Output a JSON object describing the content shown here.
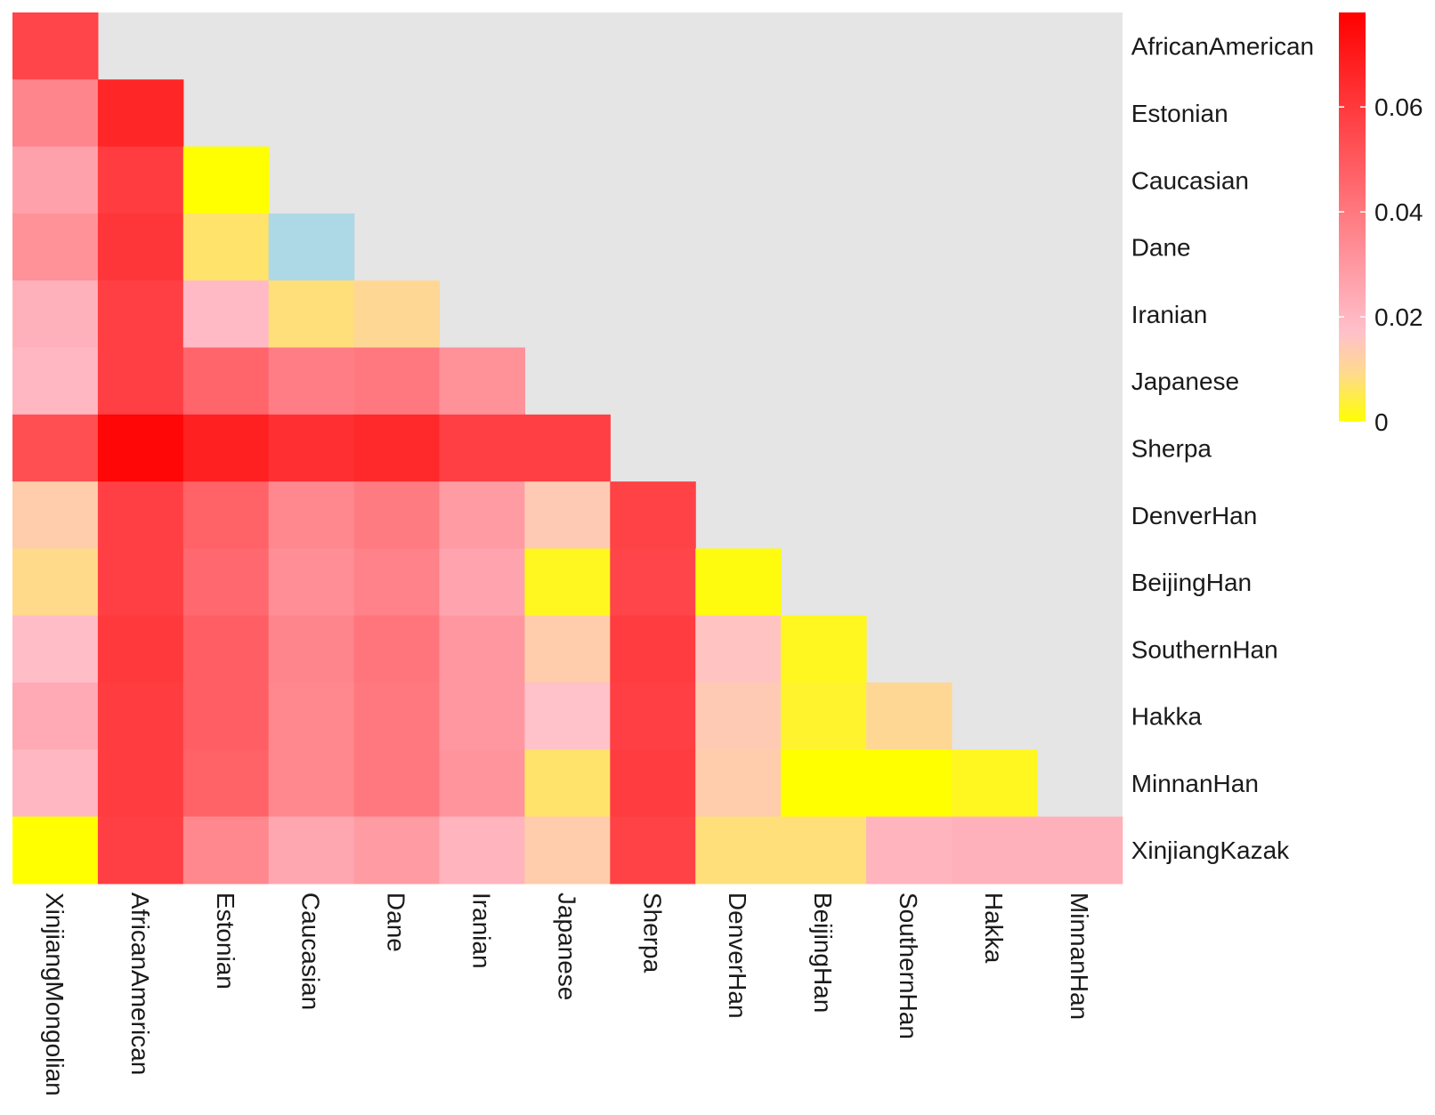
{
  "chart_data": {
    "type": "heatmap",
    "title": "",
    "xlabel": "",
    "ylabel": "",
    "rows": [
      "AfricanAmerican",
      "Estonian",
      "Caucasian",
      "Dane",
      "Iranian",
      "Japanese",
      "Sherpa",
      "DenverHan",
      "BeijingHan",
      "SouthernHan",
      "Hakka",
      "MinnanHan",
      "XinjiangKazak"
    ],
    "columns": [
      "XinjiangMongolian",
      "AfricanAmerican",
      "Estonian",
      "Caucasian",
      "Dane",
      "Iranian",
      "Japanese",
      "Sherpa",
      "DenverHan",
      "BeijingHan",
      "SouthernHan",
      "Hakka",
      "MinnanHan"
    ],
    "values": [
      [
        0.056,
        null,
        null,
        null,
        null,
        null,
        null,
        null,
        null,
        null,
        null,
        null,
        null
      ],
      [
        0.036,
        0.066,
        null,
        null,
        null,
        null,
        null,
        null,
        null,
        null,
        null,
        null,
        null
      ],
      [
        0.027,
        0.059,
        0.0,
        null,
        null,
        null,
        null,
        null,
        null,
        null,
        null,
        null,
        null
      ],
      [
        0.032,
        0.061,
        0.007,
        -0.002,
        null,
        null,
        null,
        null,
        null,
        null,
        null,
        null,
        null
      ],
      [
        0.022,
        0.058,
        0.019,
        0.008,
        0.01,
        null,
        null,
        null,
        null,
        null,
        null,
        null,
        null
      ],
      [
        0.02,
        0.058,
        0.046,
        0.038,
        0.04,
        0.032,
        null,
        null,
        null,
        null,
        null,
        null,
        null
      ],
      [
        0.053,
        0.076,
        0.068,
        0.063,
        0.065,
        0.058,
        0.058,
        null,
        null,
        null,
        null,
        null,
        null
      ],
      [
        0.013,
        0.058,
        0.047,
        0.035,
        0.039,
        0.029,
        0.014,
        0.057,
        null,
        null,
        null,
        null,
        null
      ],
      [
        0.009,
        0.058,
        0.045,
        0.033,
        0.037,
        0.026,
        0.002,
        0.056,
        0.001,
        null,
        null,
        null,
        null
      ],
      [
        0.018,
        0.06,
        0.048,
        0.036,
        0.041,
        0.03,
        0.013,
        0.059,
        0.016,
        0.002,
        null,
        null,
        null
      ],
      [
        0.024,
        0.059,
        0.048,
        0.035,
        0.04,
        0.03,
        0.017,
        0.058,
        0.014,
        0.003,
        0.01,
        null,
        null
      ],
      [
        0.02,
        0.059,
        0.047,
        0.035,
        0.04,
        0.031,
        0.007,
        0.059,
        0.013,
        0.0,
        0.0,
        0.002,
        null
      ],
      [
        0.0,
        0.058,
        0.035,
        0.025,
        0.029,
        0.021,
        0.013,
        0.057,
        0.008,
        0.008,
        0.021,
        0.022,
        0.022
      ]
    ],
    "legend": {
      "position": "right",
      "ticks": [
        "0.06",
        "0.04",
        "0.02",
        "0"
      ],
      "tick_values": [
        0.06,
        0.04,
        0.02,
        0
      ],
      "range": [
        0,
        0.078
      ],
      "colors": [
        "#ffff00",
        "#ffd98f",
        "#ffc0cb",
        "#ff0000"
      ],
      "color_stops": [
        0,
        0.12,
        0.22,
        1
      ]
    },
    "below_range_color": "#add8e6",
    "na_color": "#e5e5e5"
  }
}
